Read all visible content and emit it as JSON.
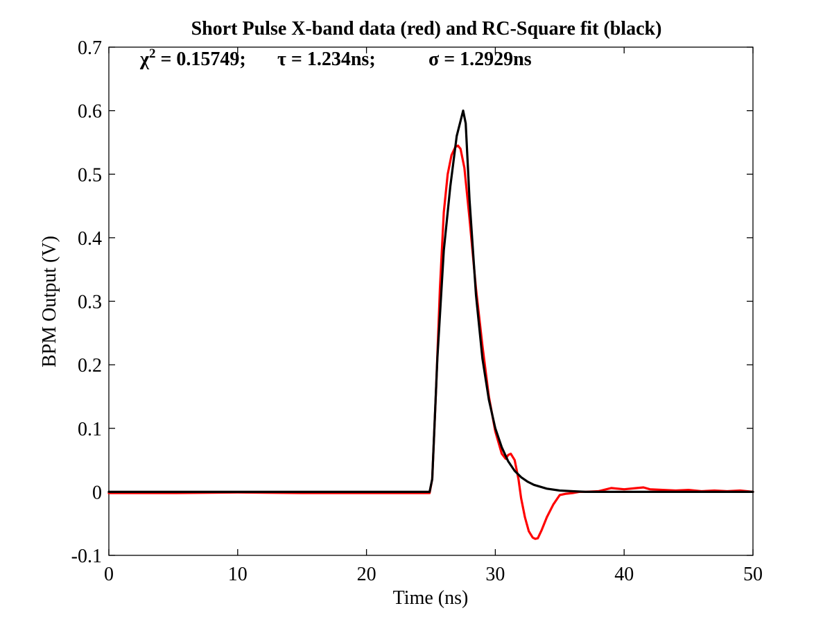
{
  "chart_data": {
    "type": "line",
    "title": "Short Pulse X-band data (red) and RC-Square fit (black)",
    "subtitle": {
      "chi_symbol": "χ",
      "chi_exponent": "2",
      "chi_text": " = 0.15749;",
      "tau_text": "τ = 1.234ns;",
      "sigma_text": "σ = 1.2929ns"
    },
    "xlabel": "Time (ns)",
    "ylabel": "BPM Output (V)",
    "xlim": [
      0,
      50
    ],
    "ylim": [
      -0.1,
      0.7
    ],
    "xticks": [
      0,
      10,
      20,
      30,
      40,
      50
    ],
    "xtick_labels": [
      "0",
      "10",
      "20",
      "30",
      "40",
      "50"
    ],
    "yticks": [
      -0.1,
      0,
      0.1,
      0.2,
      0.3,
      0.4,
      0.5,
      0.6,
      0.7
    ],
    "ytick_labels": [
      "-0.1",
      "0",
      "0.1",
      "0.2",
      "0.3",
      "0.4",
      "0.5",
      "0.6",
      "0.7"
    ],
    "grid": false,
    "series": [
      {
        "color": "#ff0000",
        "x": [
          0,
          5,
          10,
          15,
          20,
          24.9,
          25.1,
          25.4,
          25.7,
          26.0,
          26.3,
          26.6,
          26.9,
          27.1,
          27.3,
          27.6,
          28.0,
          28.5,
          29.0,
          29.5,
          30.0,
          30.5,
          30.8,
          31.0,
          31.2,
          31.5,
          31.8,
          32.0,
          32.3,
          32.6,
          32.9,
          33.1,
          33.3,
          33.6,
          34.0,
          34.5,
          35.0,
          35.5,
          36.0,
          36.5,
          37.0,
          38.0,
          39.0,
          40.0,
          41.0,
          41.5,
          42.0,
          43.0,
          44.0,
          45.0,
          46.0,
          47.0,
          48.0,
          49.0,
          50.0
        ],
        "y": [
          -0.002,
          -0.002,
          -0.001,
          -0.002,
          -0.002,
          -0.002,
          0.02,
          0.16,
          0.32,
          0.44,
          0.5,
          0.53,
          0.543,
          0.545,
          0.54,
          0.51,
          0.43,
          0.32,
          0.23,
          0.15,
          0.095,
          0.06,
          0.052,
          0.058,
          0.06,
          0.05,
          0.02,
          -0.01,
          -0.04,
          -0.062,
          -0.072,
          -0.074,
          -0.073,
          -0.06,
          -0.04,
          -0.02,
          -0.005,
          -0.003,
          -0.002,
          0.0,
          0.0,
          0.001,
          0.006,
          0.004,
          0.006,
          0.007,
          0.004,
          0.003,
          0.002,
          0.003,
          0.001,
          0.002,
          0.001,
          0.002,
          0.0
        ]
      },
      {
        "color": "#000000",
        "x": [
          0,
          5,
          10,
          15,
          20,
          24.9,
          25.1,
          25.5,
          26.0,
          26.5,
          27.0,
          27.5,
          27.7,
          28.0,
          28.5,
          29.0,
          29.5,
          30.0,
          30.5,
          31.0,
          31.5,
          32.0,
          32.5,
          33.0,
          34.0,
          35.0,
          36.0,
          37.0,
          40.0,
          45.0,
          50.0
        ],
        "y": [
          0,
          0,
          0,
          0,
          0,
          0,
          0.02,
          0.21,
          0.38,
          0.48,
          0.56,
          0.6,
          0.58,
          0.46,
          0.31,
          0.21,
          0.145,
          0.1,
          0.07,
          0.048,
          0.033,
          0.023,
          0.016,
          0.011,
          0.005,
          0.002,
          0.001,
          0.0,
          0.0,
          0.0,
          0.0
        ]
      }
    ]
  }
}
